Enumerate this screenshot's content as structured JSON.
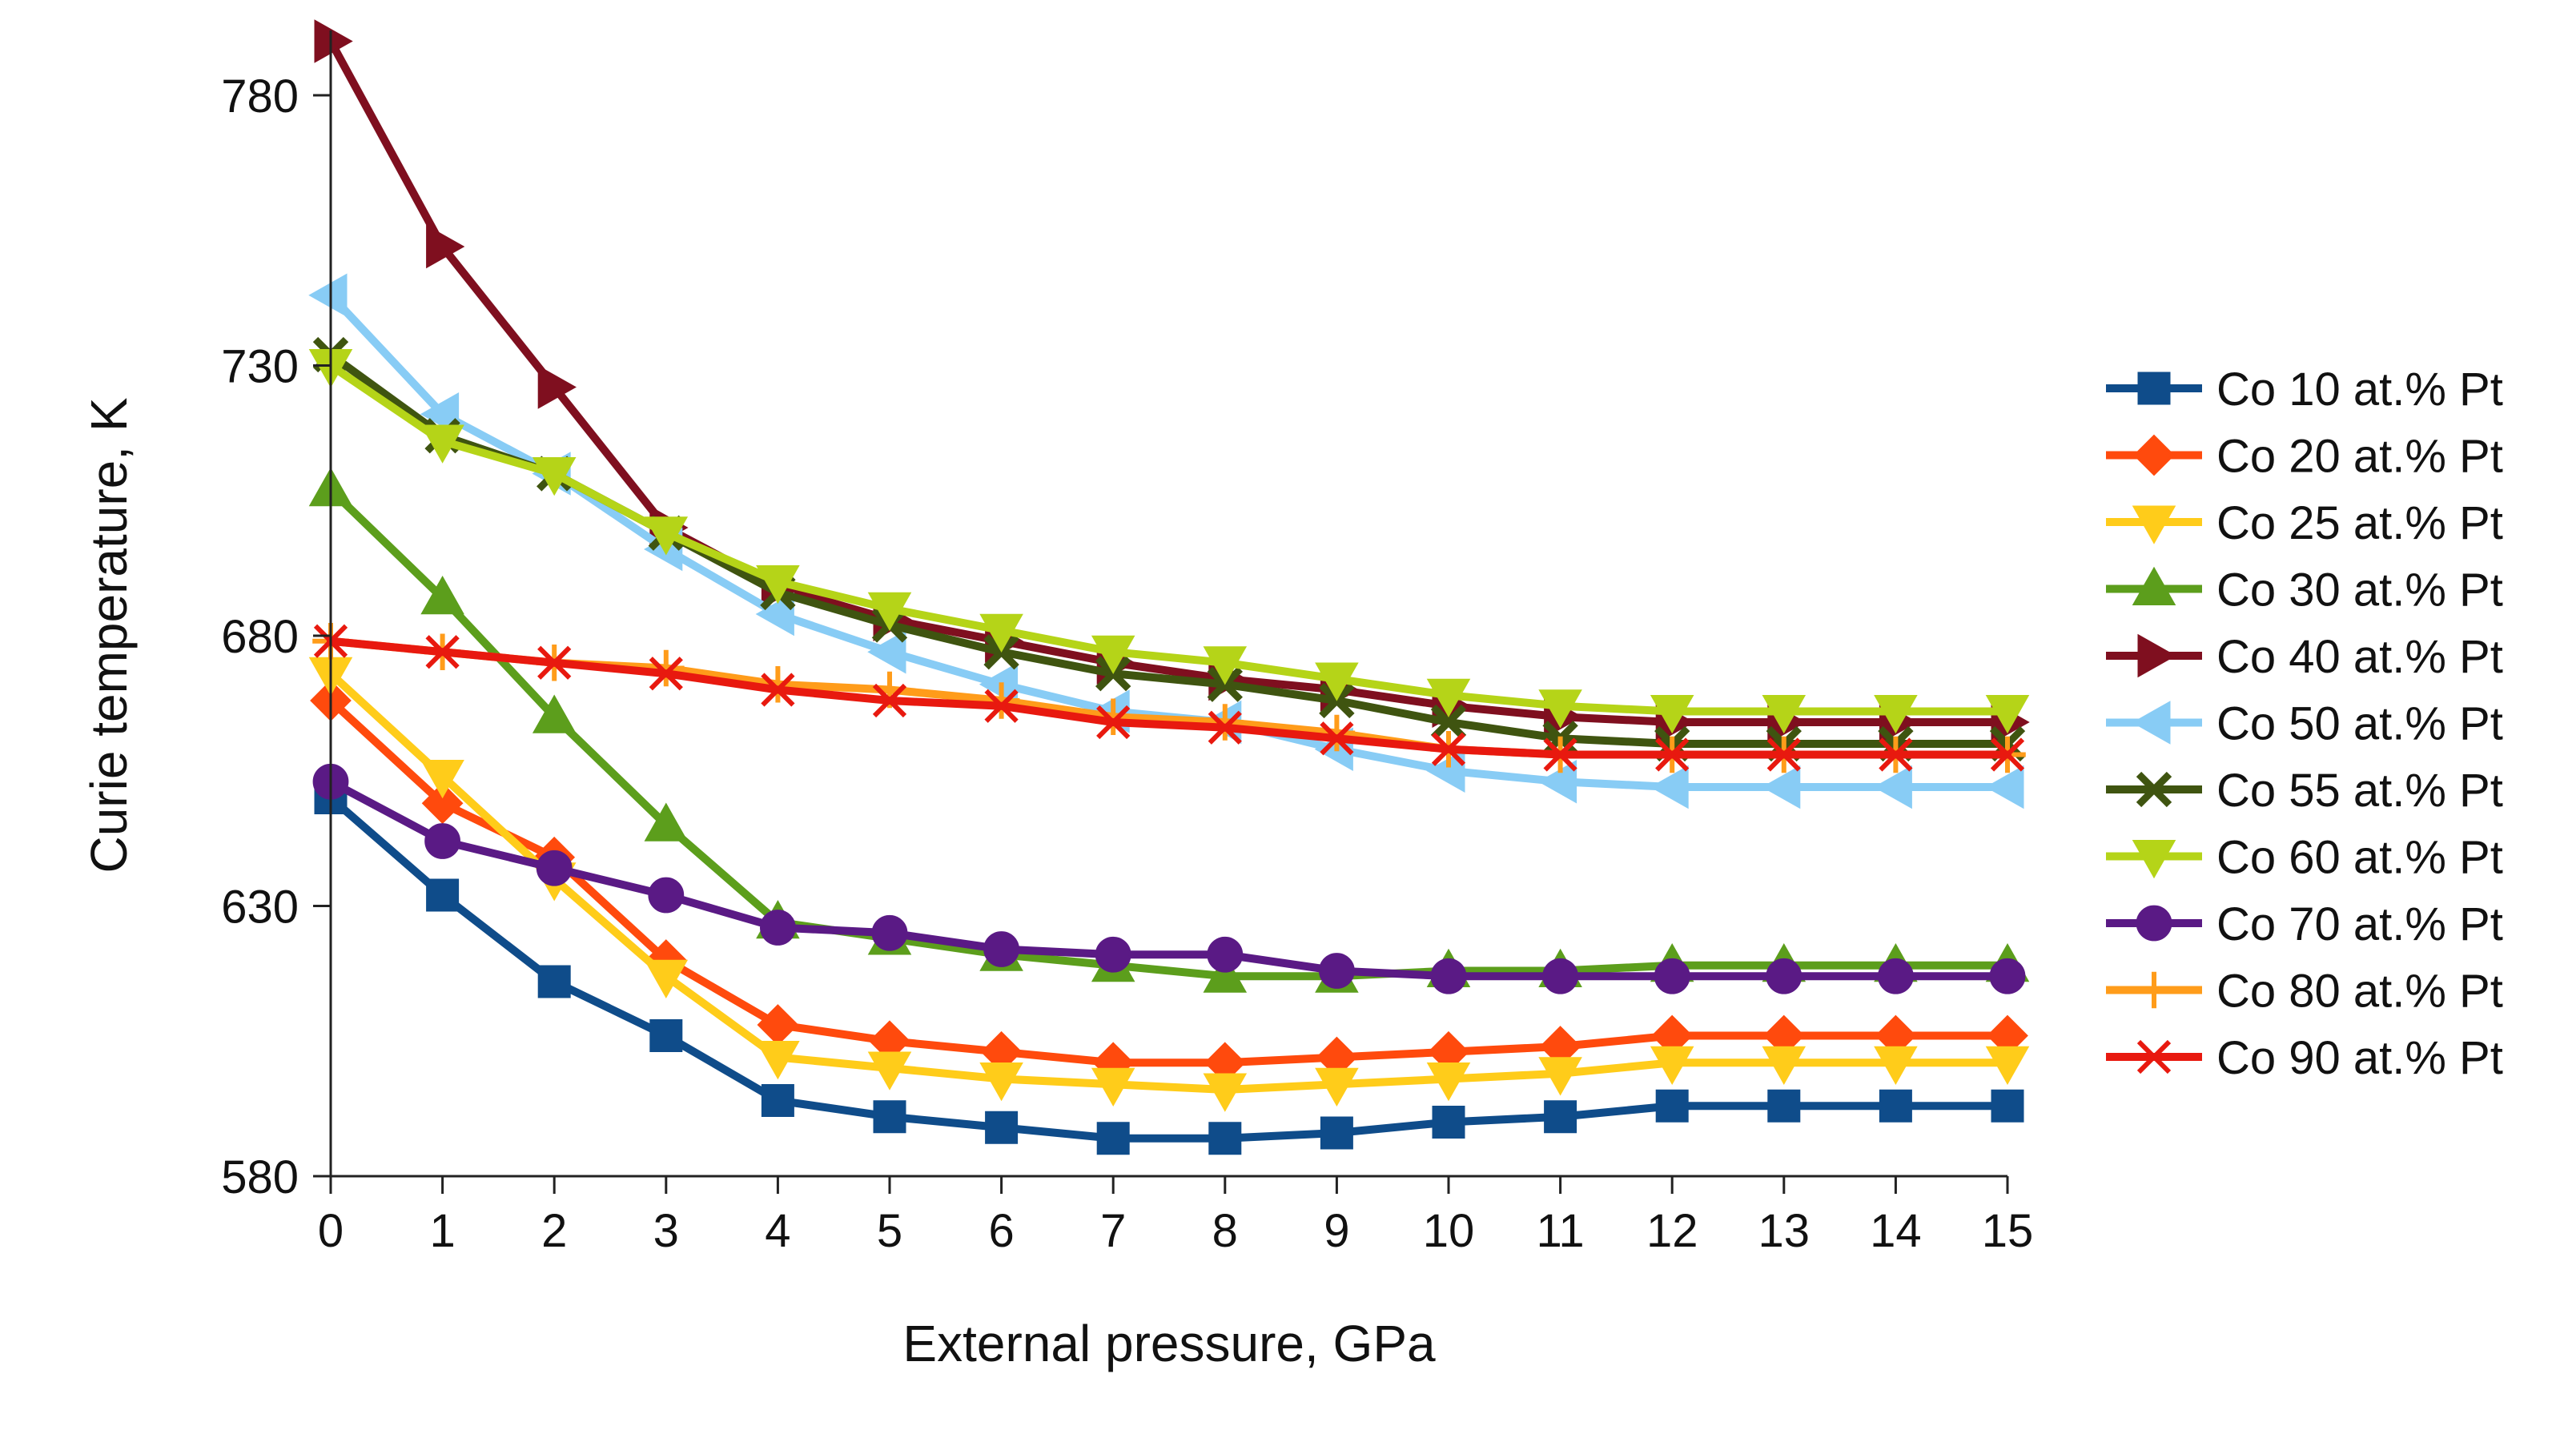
{
  "chart_data": {
    "type": "line",
    "title": "",
    "xlabel": "External pressure, GPa",
    "ylabel": "Curie temperature, K",
    "x": [
      0,
      1,
      2,
      3,
      4,
      5,
      6,
      7,
      8,
      9,
      10,
      11,
      12,
      13,
      14,
      15
    ],
    "xlim": [
      0,
      15
    ],
    "ylim": [
      580,
      792
    ],
    "y_ticks": [
      580,
      630,
      680,
      730,
      780
    ],
    "x_ticks": [
      0,
      1,
      2,
      3,
      4,
      5,
      6,
      7,
      8,
      9,
      10,
      11,
      12,
      13,
      14,
      15
    ],
    "grid": false,
    "legend_position": "right",
    "series": [
      {
        "name": "Co 10 at.% Pt",
        "color": "#0f4c8a",
        "marker": "square",
        "values": [
          650,
          632,
          616,
          606,
          594,
          591,
          589,
          587,
          587,
          588,
          590,
          591,
          593,
          593,
          593,
          593
        ]
      },
      {
        "name": "Co 20 at.% Pt",
        "color": "#ff4a0d",
        "marker": "diamond",
        "values": [
          668,
          649,
          639,
          620,
          608,
          605,
          603,
          601,
          601,
          602,
          603,
          604,
          606,
          606,
          606,
          606
        ]
      },
      {
        "name": "Co 25 at.% Pt",
        "color": "#ffcc1a",
        "marker": "triangle-down",
        "values": [
          673,
          654,
          635,
          617,
          602,
          600,
          598,
          597,
          596,
          597,
          598,
          599,
          601,
          601,
          601,
          601
        ]
      },
      {
        "name": "Co 30 at.% Pt",
        "color": "#5c9e1c",
        "marker": "triangle-up",
        "values": [
          707,
          687,
          665,
          645,
          627,
          624,
          621,
          619,
          617,
          617,
          618,
          618,
          619,
          619,
          619,
          619
        ]
      },
      {
        "name": "Co 40 at.% Pt",
        "color": "#7f0f1f",
        "marker": "triangle-right",
        "values": [
          790,
          752,
          726,
          700,
          689,
          683,
          679,
          675,
          672,
          670,
          667,
          665,
          664,
          664,
          664,
          664
        ]
      },
      {
        "name": "Co 50 at.% Pt",
        "color": "#88ccf5",
        "marker": "triangle-left",
        "values": [
          743,
          721,
          710,
          696,
          684,
          677,
          671,
          666,
          664,
          659,
          655,
          653,
          652,
          652,
          652,
          652
        ]
      },
      {
        "name": "Co 55 at.% Pt",
        "color": "#3f5410",
        "marker": "cross",
        "values": [
          732,
          717,
          710,
          699,
          688,
          682,
          677,
          673,
          671,
          668,
          664,
          661,
          660,
          660,
          660,
          660
        ]
      },
      {
        "name": "Co 60 at.% Pt",
        "color": "#b5d418",
        "marker": "triangle-down",
        "values": [
          730,
          716,
          710,
          699,
          690,
          685,
          681,
          677,
          675,
          672,
          669,
          667,
          666,
          666,
          666,
          666
        ]
      },
      {
        "name": "Co 70 at.% Pt",
        "color": "#5a1a85",
        "marker": "circle",
        "values": [
          653,
          642,
          637,
          632,
          626,
          625,
          622,
          621,
          621,
          618,
          617,
          617,
          617,
          617,
          617,
          617
        ]
      },
      {
        "name": "Co 80 at.% Pt",
        "color": "#ff9c1a",
        "marker": "plus",
        "values": [
          679,
          677,
          675,
          674,
          671,
          670,
          668,
          665,
          664,
          662,
          659,
          658,
          658,
          658,
          658,
          658
        ]
      },
      {
        "name": "Co 90 at.% Pt",
        "color": "#e8190f",
        "marker": "x",
        "values": [
          679,
          677,
          675,
          673,
          670,
          668,
          667,
          664,
          663,
          661,
          659,
          658,
          658,
          658,
          658,
          658
        ]
      }
    ]
  }
}
